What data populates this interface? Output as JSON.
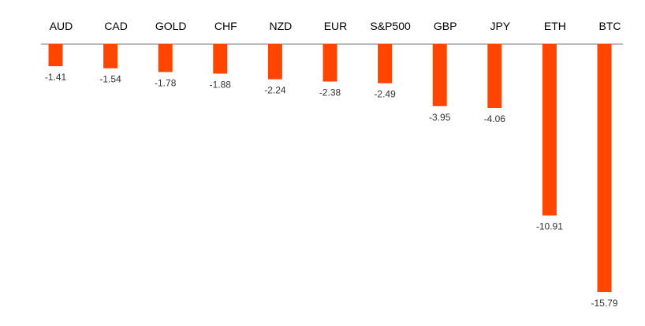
{
  "chart_data": {
    "type": "bar",
    "categories": [
      "AUD",
      "CAD",
      "GOLD",
      "CHF",
      "NZD",
      "EUR",
      "S&P500",
      "GBP",
      "JPY",
      "ETH",
      "BTC"
    ],
    "values": [
      -1.41,
      -1.54,
      -1.78,
      -1.88,
      -2.24,
      -2.38,
      -2.49,
      -3.95,
      -4.06,
      -10.91,
      -15.79
    ],
    "value_labels": [
      "-1.41",
      "-1.54",
      "-1.78",
      "-1.88",
      "-2.24",
      "-2.38",
      "-2.49",
      "-3.95",
      "-4.06",
      "-10.91",
      "-15.79"
    ],
    "ylim": [
      -15.79,
      0
    ],
    "grid": false,
    "legend": "none",
    "category_axis_position": "top",
    "bar_color": "#ff4500",
    "axis_color": "#a6a6a6"
  }
}
